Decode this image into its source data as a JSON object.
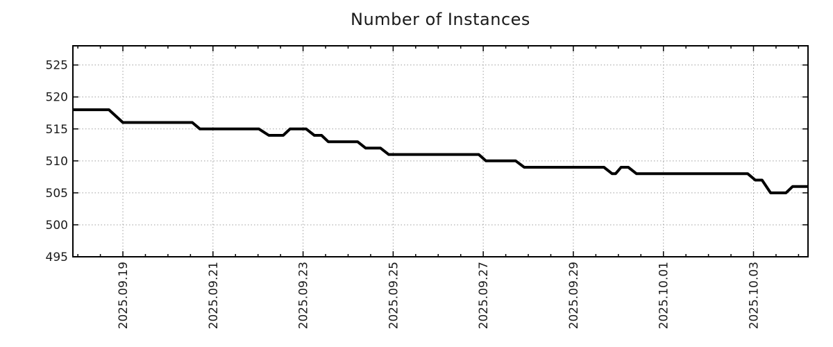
{
  "chart": {
    "title": "Number of Instances"
  },
  "chart_data": {
    "type": "line",
    "title": "Number of Instances",
    "x_unit": "days since 2025-09-19 00:00",
    "xlim": [
      -1.11,
      15.21
    ],
    "ylim": [
      495,
      528
    ],
    "y_ticks": [
      495,
      500,
      505,
      510,
      515,
      520,
      525
    ],
    "x_ticks": [
      {
        "t": 0,
        "label": "2025.09.19"
      },
      {
        "t": 2,
        "label": "2025.09.21"
      },
      {
        "t": 4,
        "label": "2025.09.23"
      },
      {
        "t": 6,
        "label": "2025.09.25"
      },
      {
        "t": 8,
        "label": "2025.09.27"
      },
      {
        "t": 10,
        "label": "2025.09.29"
      },
      {
        "t": 12,
        "label": "2025.10.01"
      },
      {
        "t": 14,
        "label": "2025.10.03"
      }
    ],
    "x_minor_tick_step": 0.5,
    "grid": true,
    "legend": null,
    "colors": {
      "line": "#000000",
      "grid": "#9d9d9d",
      "border": "#000000",
      "text": "#1a1a1a"
    },
    "line_width": 4,
    "points": [
      [
        -1.11,
        518
      ],
      [
        -0.31,
        518
      ],
      [
        0.0,
        516
      ],
      [
        1.54,
        516
      ],
      [
        1.71,
        515
      ],
      [
        3.02,
        515
      ],
      [
        3.24,
        514
      ],
      [
        3.56,
        514
      ],
      [
        3.71,
        515
      ],
      [
        4.07,
        515
      ],
      [
        4.25,
        514
      ],
      [
        4.41,
        514
      ],
      [
        4.56,
        513
      ],
      [
        5.21,
        513
      ],
      [
        5.39,
        512
      ],
      [
        5.72,
        512
      ],
      [
        5.9,
        511
      ],
      [
        7.9,
        511
      ],
      [
        8.06,
        510
      ],
      [
        8.72,
        510
      ],
      [
        8.91,
        509
      ],
      [
        10.68,
        509
      ],
      [
        10.86,
        508
      ],
      [
        10.94,
        508
      ],
      [
        11.06,
        509
      ],
      [
        11.22,
        509
      ],
      [
        11.4,
        508
      ],
      [
        13.87,
        508
      ],
      [
        14.04,
        507
      ],
      [
        14.19,
        507
      ],
      [
        14.38,
        505
      ],
      [
        14.72,
        505
      ],
      [
        14.87,
        506
      ],
      [
        15.21,
        506
      ]
    ]
  }
}
